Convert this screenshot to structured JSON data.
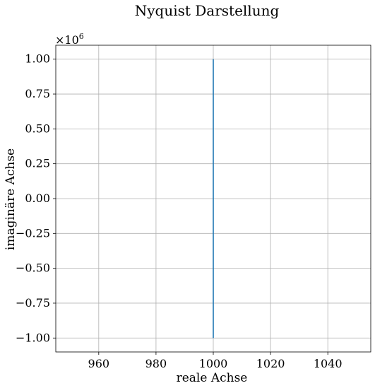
{
  "chart_data": {
    "type": "line",
    "title": "Nyquist Darstellung",
    "xlabel": "reale Achse",
    "ylabel": "imaginäre Achse",
    "y_offset_multiplier": "×10^6",
    "xlim": [
      945,
      1055
    ],
    "ylim": [
      -1.1,
      1.1
    ],
    "x_ticks": [
      960,
      980,
      1000,
      1020,
      1040
    ],
    "x_tick_labels": [
      "960",
      "980",
      "1000",
      "1020",
      "1040"
    ],
    "y_ticks": [
      1.0,
      0.75,
      0.5,
      0.25,
      0.0,
      -0.25,
      -0.5,
      -0.75,
      -1.0
    ],
    "y_tick_labels": [
      "1.00",
      "0.75",
      "0.50",
      "0.25",
      "0.00",
      "−0.25",
      "−0.50",
      "−0.75",
      "−1.00"
    ],
    "grid": true,
    "series": [
      {
        "color": "#1f77b4",
        "x": [
          1000,
          1000
        ],
        "y": [
          -1.0,
          1.0
        ]
      }
    ]
  }
}
